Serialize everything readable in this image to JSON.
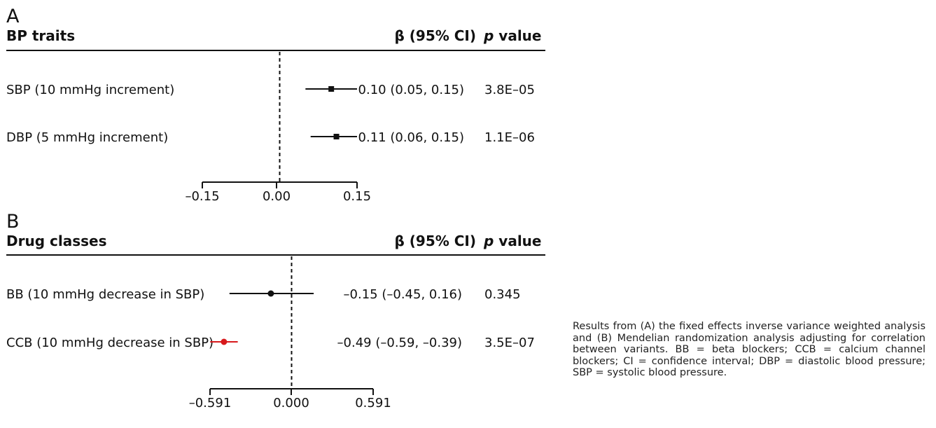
{
  "chart_data": [
    {
      "type": "forest",
      "panel_label": "A",
      "header": {
        "group": "BP traits",
        "beta": "β (95% CI)",
        "p_italic": "p",
        "p_rest": " value"
      },
      "ticks": [
        "–0.15",
        "0.00",
        "0.15"
      ],
      "xlim": [
        -0.15,
        0.15
      ],
      "reference_line": 0,
      "rows": [
        {
          "label": "SBP (10 mmHg increment)",
          "beta": 0.1,
          "lo": 0.05,
          "hi": 0.15,
          "ci_text": "0.10 (0.05, 0.15)",
          "p_text": "3.8E–05",
          "marker": "square",
          "color": "#111111"
        },
        {
          "label": "DBP (5 mmHg increment)",
          "beta": 0.11,
          "lo": 0.06,
          "hi": 0.15,
          "ci_text": "0.11 (0.06, 0.15)",
          "p_text": "1.1E–06",
          "marker": "square",
          "color": "#111111"
        }
      ]
    },
    {
      "type": "forest",
      "panel_label": "B",
      "header": {
        "group": "Drug classes",
        "beta": "β (95% CI)",
        "p_italic": "p",
        "p_rest": " value"
      },
      "ticks": [
        "–0.591",
        "0.000",
        "0.591"
      ],
      "xlim": [
        -0.591,
        0.591
      ],
      "reference_line": 0,
      "rows": [
        {
          "label": "BB (10 mmHg decrease in SBP)",
          "beta": -0.15,
          "lo": -0.45,
          "hi": 0.16,
          "ci_text": "–0.15 (–0.45, 0.16)",
          "p_text": "0.345",
          "marker": "circle",
          "color": "#111111"
        },
        {
          "label": "CCB (10 mmHg decrease in SBP)",
          "beta": -0.49,
          "lo": -0.59,
          "hi": -0.39,
          "ci_text": "–0.49 (–0.59, –0.39)",
          "p_text": "3.5E–07",
          "marker": "circle",
          "color": "#d7191c"
        }
      ]
    }
  ],
  "caption": "Results from (A) the fixed effects inverse variance weighted analysis and (B) Mendelian randomization analysis adjusting for correlation between variants. BB = beta blockers; CCB = calcium channel blockers; CI = confidence interval; DBP = diastolic blood pressure; SBP = systolic blood pressure."
}
